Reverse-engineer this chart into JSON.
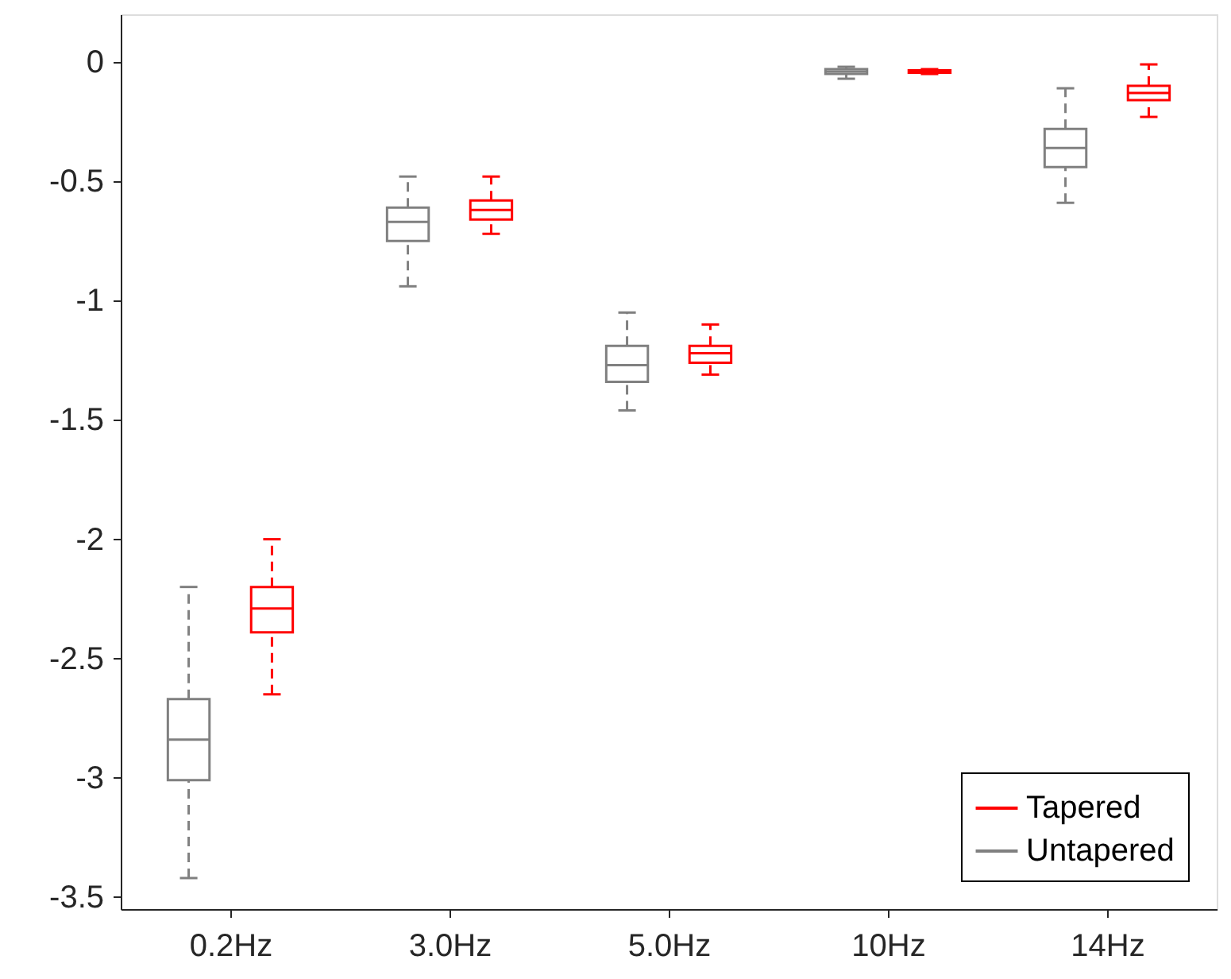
{
  "chart_data": {
    "type": "box",
    "categories": [
      "0.2Hz",
      "3.0Hz",
      "5.0Hz",
      "10Hz",
      "14Hz"
    ],
    "ylim": [
      -3.55,
      0.2
    ],
    "yticks": [
      -3.5,
      -3,
      -2.5,
      -2,
      -1.5,
      -1,
      -0.5,
      0
    ],
    "grid": false,
    "legend": "bottom right",
    "line_style": "dashed",
    "series": [
      {
        "name": "Untapered",
        "color": "#808080",
        "boxes": [
          {
            "low": -3.42,
            "q1": -3.01,
            "median": -2.84,
            "q3": -2.67,
            "high": -2.2
          },
          {
            "low": -0.94,
            "q1": -0.75,
            "median": -0.67,
            "q3": -0.61,
            "high": -0.48
          },
          {
            "low": -1.46,
            "q1": -1.34,
            "median": -1.27,
            "q3": -1.19,
            "high": -1.05
          },
          {
            "low": -0.07,
            "q1": -0.05,
            "median": -0.04,
            "q3": -0.03,
            "high": -0.02
          },
          {
            "low": -0.59,
            "q1": -0.44,
            "median": -0.36,
            "q3": -0.28,
            "high": -0.11
          }
        ]
      },
      {
        "name": "Tapered",
        "color": "#ff0000",
        "boxes": [
          {
            "low": -2.65,
            "q1": -2.39,
            "median": -2.29,
            "q3": -2.2,
            "high": -2.0
          },
          {
            "low": -0.72,
            "q1": -0.66,
            "median": -0.62,
            "q3": -0.58,
            "high": -0.48
          },
          {
            "low": -1.31,
            "q1": -1.26,
            "median": -1.22,
            "q3": -1.19,
            "high": -1.1
          },
          {
            "low": -0.05,
            "q1": -0.045,
            "median": -0.04,
            "q3": -0.035,
            "high": -0.03
          },
          {
            "low": -0.23,
            "q1": -0.16,
            "median": -0.13,
            "q3": -0.1,
            "high": -0.01
          }
        ]
      }
    ]
  }
}
